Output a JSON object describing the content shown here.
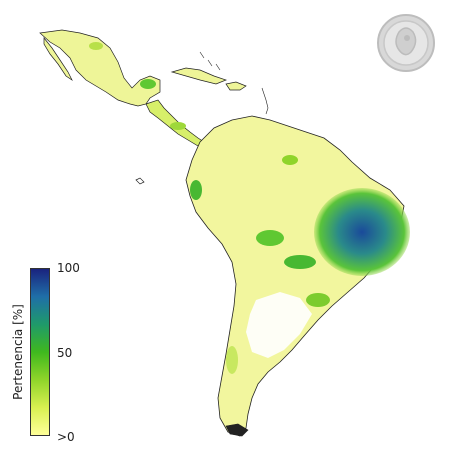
{
  "legend": {
    "title": "Pertenencia [%]",
    "tick_max": "100",
    "tick_mid": "50",
    "tick_min": ">0",
    "colors": [
      "#ffff99",
      "#d8f050",
      "#8fd42a",
      "#3fb81e",
      "#1f9a6a",
      "#1f6fa8",
      "#1a237e"
    ]
  },
  "map": {
    "region": "Latin America",
    "land_color": "#f5f7a0",
    "outline_color": "#222222"
  },
  "logo": {
    "icon": "seal-logo-icon"
  }
}
